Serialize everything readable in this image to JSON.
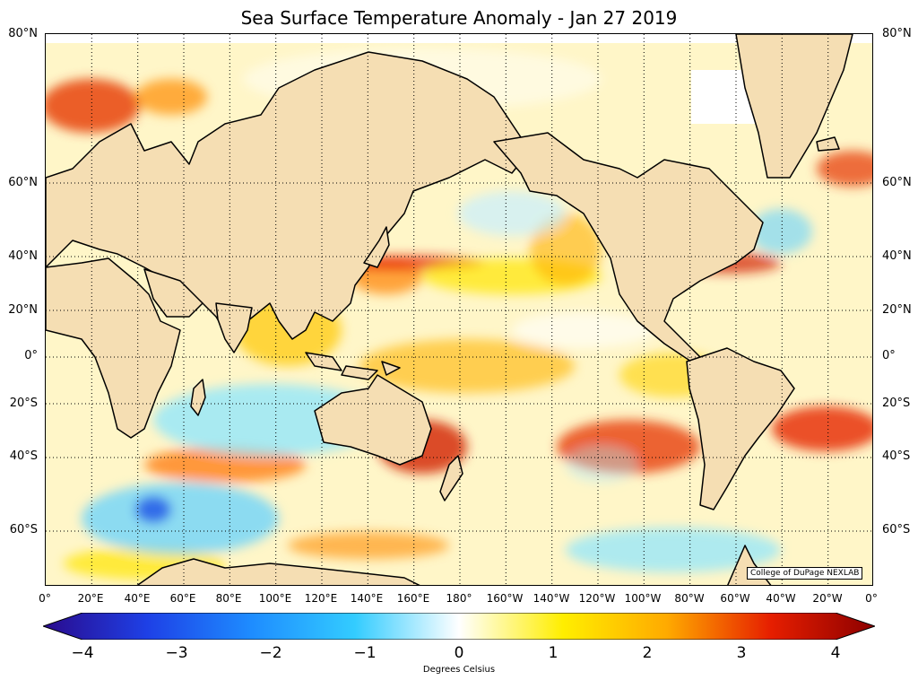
{
  "title": "Sea Surface Temperature Anomaly - Jan 27 2019",
  "credit": "College of DuPage NEXLAB",
  "lat_labels": [
    "80°N",
    "60°N",
    "40°N",
    "20°N",
    "0°",
    "20°S",
    "40°S",
    "60°S"
  ],
  "lat_values": [
    80,
    60,
    40,
    20,
    0,
    -20,
    -40,
    -60
  ],
  "lon_labels": [
    "0°",
    "20°E",
    "40°E",
    "60°E",
    "80°E",
    "100°E",
    "120°E",
    "140°E",
    "160°E",
    "180°",
    "160°W",
    "140°W",
    "120°W",
    "100°W",
    "80°W",
    "60°W",
    "40°W",
    "20°W",
    "0°"
  ],
  "colorbar": {
    "unit_label": "Degrees Celsius",
    "min": -4,
    "max": 4,
    "ticks": [
      "−4",
      "−3",
      "−2",
      "−1",
      "0",
      "1",
      "2",
      "3",
      "4"
    ],
    "colors": [
      "#2a0a8c",
      "#1e40e6",
      "#1e8cff",
      "#33ccff",
      "#ffffff",
      "#ffee00",
      "#ffaa00",
      "#e61e00",
      "#8c0000"
    ]
  }
}
